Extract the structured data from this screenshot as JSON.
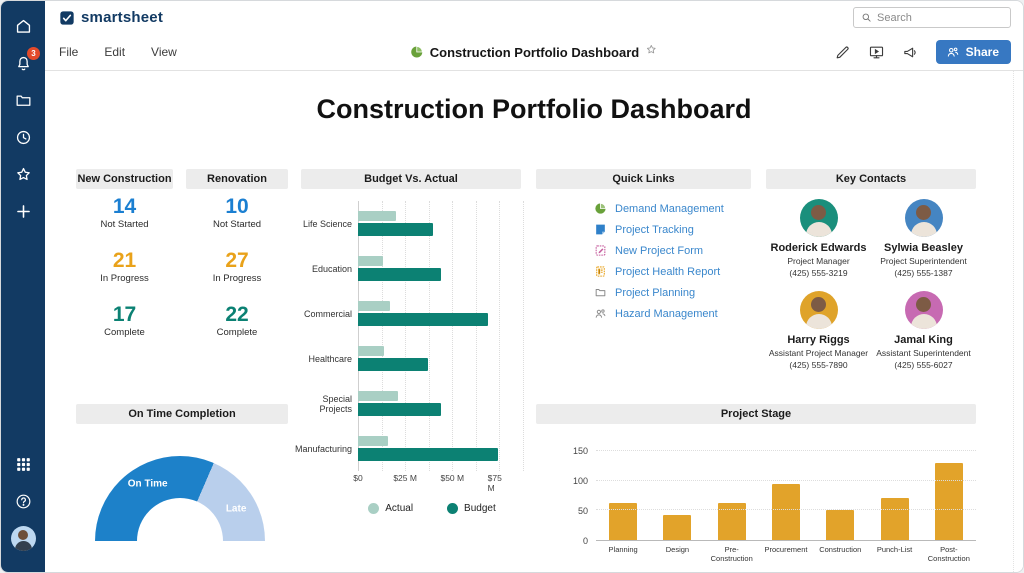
{
  "sidebar": {
    "notification_count": "3",
    "icons": [
      "home-icon",
      "notifications-icon",
      "folders-icon",
      "recents-icon",
      "favorites-icon",
      "create-icon",
      "apps-icon",
      "help-icon",
      "account-avatar"
    ]
  },
  "topbar": {
    "logo_text": "smartsheet",
    "search_placeholder": "Search"
  },
  "menubar": {
    "menus": {
      "file": "File",
      "edit": "Edit",
      "view": "View"
    },
    "doc_title": "Construction Portfolio Dashboard",
    "share_label": "Share"
  },
  "page": {
    "title": "Construction Portfolio Dashboard"
  },
  "panels": {
    "new_construction": {
      "title": "New Construction",
      "stats": [
        {
          "value": "14",
          "label": "Not Started",
          "color": "#1b7fd1"
        },
        {
          "value": "21",
          "label": "In Progress",
          "color": "#e9a21a"
        },
        {
          "value": "17",
          "label": "Complete",
          "color": "#0b8173"
        }
      ]
    },
    "renovation": {
      "title": "Renovation",
      "stats": [
        {
          "value": "10",
          "label": "Not Started",
          "color": "#1b7fd1"
        },
        {
          "value": "27",
          "label": "In Progress",
          "color": "#e9a21a"
        },
        {
          "value": "22",
          "label": "Complete",
          "color": "#0b8173"
        }
      ]
    },
    "quick_links": {
      "title": "Quick Links",
      "links": [
        {
          "label": "Demand Management",
          "icon": "pie-chart-icon",
          "color": "#69a13a"
        },
        {
          "label": "Project Tracking",
          "icon": "sheet-icon",
          "color": "#2f80c9"
        },
        {
          "label": "New Project Form",
          "icon": "form-icon",
          "color": "#c7609f"
        },
        {
          "label": "Project Health Report",
          "icon": "report-icon",
          "color": "#e8a21d"
        },
        {
          "label": "Project Planning",
          "icon": "folder-icon",
          "color": "#8a8a8a"
        },
        {
          "label": "Hazard Management",
          "icon": "people-icon",
          "color": "#8a8a8a"
        }
      ]
    },
    "key_contacts": {
      "title": "Key Contacts",
      "contacts": [
        {
          "name": "Roderick Edwards",
          "role": "Project Manager",
          "phone": "(425) 555-3219",
          "avatar_color": "#1a8f7c"
        },
        {
          "name": "Sylwia Beasley",
          "role": "Project Superintendent",
          "phone": "(425) 555-1387",
          "avatar_color": "#4585c2"
        },
        {
          "name": "Harry Riggs",
          "role": "Assistant Project Manager",
          "phone": "(425) 555-7890",
          "avatar_color": "#dfa32a"
        },
        {
          "name": "Jamal King",
          "role": "Assistant Superintendent",
          "phone": "(425) 555-6027",
          "avatar_color": "#c76ab2"
        }
      ]
    }
  },
  "chart_data": [
    {
      "type": "bar",
      "orientation": "horizontal",
      "title": "Budget Vs. Actual",
      "categories": [
        "Life Science",
        "Education",
        "Commercial",
        "Healthcare",
        "Special Projects",
        "Manufacturing"
      ],
      "series": [
        {
          "name": "Actual",
          "color": "#a9cfc4",
          "values": [
            20,
            13,
            17,
            14,
            21,
            16
          ]
        },
        {
          "name": "Budget",
          "color": "#0c8173",
          "values": [
            40,
            44,
            69,
            37,
            44,
            74
          ]
        }
      ],
      "x_tick_labels": [
        "$0",
        "$25 M",
        "$50 M",
        "$75 M"
      ],
      "x_tick_values": [
        0,
        25,
        50,
        75
      ],
      "xlim": [
        0,
        87.5
      ],
      "grid_step": 12.5,
      "unit": "millions USD",
      "legend_position": "bottom"
    },
    {
      "type": "gauge",
      "title": "On Time Completion",
      "slices": [
        {
          "label": "On Time",
          "value": 63,
          "color": "#1d81c9"
        },
        {
          "label": "Late",
          "value": 37,
          "color": "#b9cfec"
        }
      ]
    },
    {
      "type": "bar",
      "orientation": "vertical",
      "title": "Project Stage",
      "categories": [
        "Planning",
        "Design",
        "Pre-Construction",
        "Procurement",
        "Construction",
        "Punch-List",
        "Post-Construction"
      ],
      "values": [
        62,
        42,
        62,
        95,
        50,
        71,
        129
      ],
      "color": "#e2a32a",
      "y_ticks": [
        0,
        50,
        100,
        150
      ],
      "ylim": [
        0,
        150
      ],
      "grid": true
    }
  ]
}
